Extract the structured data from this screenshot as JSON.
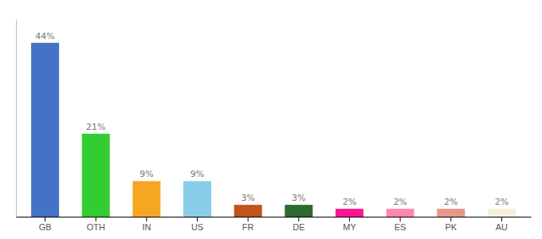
{
  "chart_data": {
    "type": "bar",
    "categories": [
      "GB",
      "OTH",
      "IN",
      "US",
      "FR",
      "DE",
      "MY",
      "ES",
      "PK",
      "AU"
    ],
    "values": [
      44,
      21,
      9,
      9,
      3,
      3,
      2,
      2,
      2,
      2
    ],
    "value_labels": [
      "44%",
      "21%",
      "9%",
      "9%",
      "3%",
      "3%",
      "2%",
      "2%",
      "2%",
      "2%"
    ],
    "colors": [
      "#4472c4",
      "#33cc33",
      "#f5a623",
      "#87ceeb",
      "#c0531e",
      "#2d6a2d",
      "#ff1493",
      "#ff85b0",
      "#e8958a",
      "#f5f0dc"
    ],
    "ylim": [
      0,
      50
    ],
    "grid": false,
    "data_labels": true,
    "tick_labels": "x"
  }
}
